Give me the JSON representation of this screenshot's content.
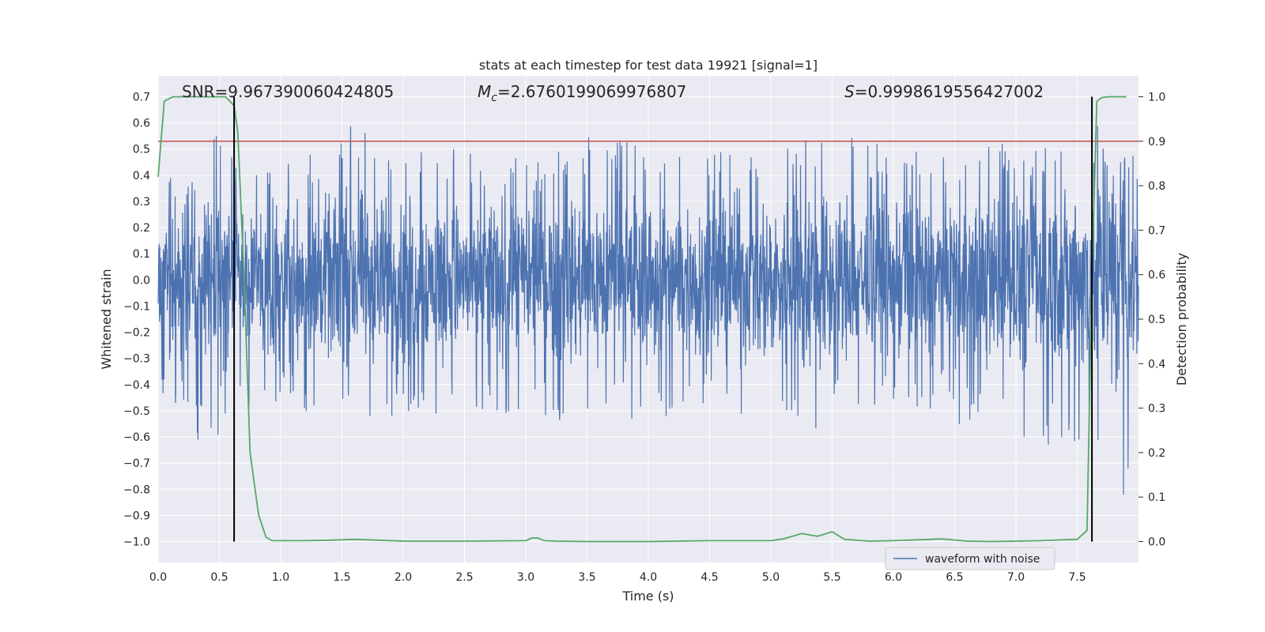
{
  "chart_data": {
    "type": "line",
    "title": "stats at each timestep for test data 19921 [signal=1]",
    "xlabel": "Time (s)",
    "ylabel": "Whitened strain",
    "ylabel_right": "Detection probability",
    "xlim": [
      0.0,
      8.0
    ],
    "ylim": [
      -1.08,
      0.78
    ],
    "ylim_right": [
      -0.047,
      1.047
    ],
    "x_ticks": [
      "0.0",
      "0.5",
      "1.0",
      "1.5",
      "2.0",
      "2.5",
      "3.0",
      "3.5",
      "4.0",
      "4.5",
      "5.0",
      "5.5",
      "6.0",
      "6.5",
      "7.0",
      "7.5"
    ],
    "y_ticks": [
      "0.7",
      "0.6",
      "0.5",
      "0.4",
      "0.3",
      "0.2",
      "0.1",
      "0.0",
      "−0.1",
      "−0.2",
      "−0.3",
      "−0.4",
      "−0.5",
      "−0.6",
      "−0.7",
      "−0.8",
      "−0.9",
      "−1.0"
    ],
    "y_right_ticks": [
      "1.0",
      "0.9",
      "0.8",
      "0.7",
      "0.6",
      "0.5",
      "0.4",
      "0.3",
      "0.2",
      "0.1",
      "0.0"
    ],
    "annotations": {
      "snr": "SNR=9.967390060424805",
      "mc_symbol": "M",
      "mc_sub": "c",
      "mc_value": "=2.6760199069976807",
      "s_symbol": "S",
      "s_value": "=0.9998619556427002"
    },
    "legend": {
      "label": "waveform with noise",
      "placement": "bottom-right"
    },
    "grid": true,
    "series": [
      {
        "name": "waveform with noise",
        "color": "#4c72b0",
        "axis": "left",
        "envelope_x": [
          0.0,
          0.1,
          0.2,
          0.3,
          0.4,
          0.5,
          0.6,
          0.7,
          0.8,
          0.9,
          1.0,
          1.2,
          1.4,
          1.6,
          1.8,
          2.0,
          2.2,
          2.4,
          2.6,
          2.8,
          3.0,
          3.2,
          3.4,
          3.6,
          3.8,
          4.0,
          4.2,
          4.4,
          4.6,
          4.8,
          5.0,
          5.2,
          5.4,
          5.6,
          5.8,
          6.0,
          6.2,
          6.4,
          6.6,
          6.8,
          7.0,
          7.2,
          7.4,
          7.6,
          7.8,
          8.0
        ],
        "envelope_upper": [
          0.35,
          0.4,
          0.42,
          0.38,
          0.45,
          0.65,
          0.5,
          0.45,
          0.42,
          0.44,
          0.47,
          0.49,
          0.46,
          0.62,
          0.5,
          0.58,
          0.49,
          0.52,
          0.48,
          0.49,
          0.47,
          0.5,
          0.48,
          0.6,
          0.55,
          0.5,
          0.48,
          0.55,
          0.49,
          0.52,
          0.54,
          0.58,
          0.56,
          0.63,
          0.51,
          0.55,
          0.5,
          0.52,
          0.5,
          0.54,
          0.5,
          0.52,
          0.55,
          0.65,
          0.52,
          0.45
        ],
        "envelope_lower": [
          -0.4,
          -0.5,
          -0.45,
          -0.64,
          -0.58,
          -0.6,
          -0.5,
          -0.5,
          -0.48,
          -0.5,
          -0.55,
          -0.5,
          -0.52,
          -0.5,
          -0.55,
          -0.5,
          -0.55,
          -0.53,
          -0.5,
          -0.55,
          -0.5,
          -0.57,
          -0.52,
          -0.55,
          -0.5,
          -0.6,
          -0.5,
          -0.52,
          -0.5,
          -0.57,
          -0.5,
          -0.55,
          -0.6,
          -0.55,
          -0.5,
          -0.55,
          -0.5,
          -0.6,
          -0.55,
          -0.5,
          -0.58,
          -0.65,
          -0.6,
          -0.7,
          -1.0,
          -0.62
        ]
      },
      {
        "name": "detection probability",
        "color": "#55a868",
        "axis": "right",
        "x": [
          0.0,
          0.05,
          0.12,
          0.2,
          0.35,
          0.55,
          0.62,
          0.65,
          0.7,
          0.75,
          0.82,
          0.88,
          0.93,
          1.0,
          1.2,
          1.4,
          1.6,
          1.8,
          2.0,
          2.5,
          3.0,
          3.05,
          3.1,
          3.15,
          3.25,
          3.5,
          4.0,
          4.5,
          4.8,
          5.0,
          5.1,
          5.25,
          5.38,
          5.5,
          5.6,
          5.8,
          6.0,
          6.4,
          6.6,
          6.8,
          7.0,
          7.2,
          7.5,
          7.58,
          7.62,
          7.66,
          7.7,
          7.75,
          7.8,
          7.9
        ],
        "y": [
          0.82,
          0.99,
          1.0,
          1.0,
          1.0,
          1.0,
          0.98,
          0.92,
          0.6,
          0.2,
          0.06,
          0.01,
          0.002,
          0.002,
          0.002,
          0.003,
          0.005,
          0.003,
          0.001,
          0.001,
          0.002,
          0.008,
          0.008,
          0.002,
          0.001,
          0.0,
          0.0,
          0.002,
          0.002,
          0.002,
          0.006,
          0.018,
          0.012,
          0.022,
          0.005,
          0.001,
          0.002,
          0.006,
          0.001,
          0.0,
          0.001,
          0.002,
          0.005,
          0.025,
          0.6,
          0.99,
          0.998,
          1.0,
          1.0,
          1.0
        ]
      }
    ],
    "threshold_line": {
      "value": 0.9,
      "axis": "right",
      "color": "#c44e52"
    },
    "event_lines": [
      0.62,
      7.62
    ],
    "event_color": "#000000"
  }
}
